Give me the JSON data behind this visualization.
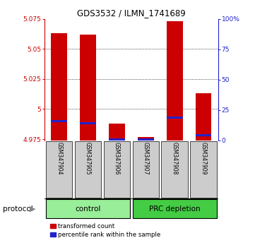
{
  "title": "GDS3532 / ILMN_1741689",
  "samples": [
    "GSM347904",
    "GSM347905",
    "GSM347906",
    "GSM347907",
    "GSM347908",
    "GSM347909"
  ],
  "groups": [
    "control",
    "control",
    "control",
    "PRC depletion",
    "PRC depletion",
    "PRC depletion"
  ],
  "red_bar_top": [
    5.063,
    5.062,
    4.988,
    4.977,
    5.073,
    5.013
  ],
  "red_bar_bottom": [
    4.974,
    4.974,
    4.974,
    4.974,
    4.974,
    4.974
  ],
  "blue_marker": [
    4.99,
    4.988,
    4.975,
    4.975,
    4.993,
    4.978
  ],
  "ylim_min": 4.974,
  "ylim_max": 5.075,
  "yticks": [
    4.975,
    5.0,
    5.025,
    5.05,
    5.075
  ],
  "ytick_labels": [
    "4.975",
    "5",
    "5.025",
    "5.05",
    "5.075"
  ],
  "right_yticks": [
    0,
    25,
    50,
    75,
    100
  ],
  "right_ytick_labels": [
    "0",
    "25",
    "50",
    "75",
    "100%"
  ],
  "bar_color": "#cc0000",
  "blue_color": "#2222cc",
  "control_color": "#99ee99",
  "prc_color": "#44cc44",
  "sample_box_color": "#cccccc",
  "left_axis_color": "#cc0000",
  "right_axis_color": "#2222cc",
  "bar_width": 0.55,
  "legend_red_label": "transformed count",
  "legend_blue_label": "percentile rank within the sample",
  "protocol_label": "protocol",
  "grid_lines": [
    5.0,
    5.025,
    5.05
  ]
}
